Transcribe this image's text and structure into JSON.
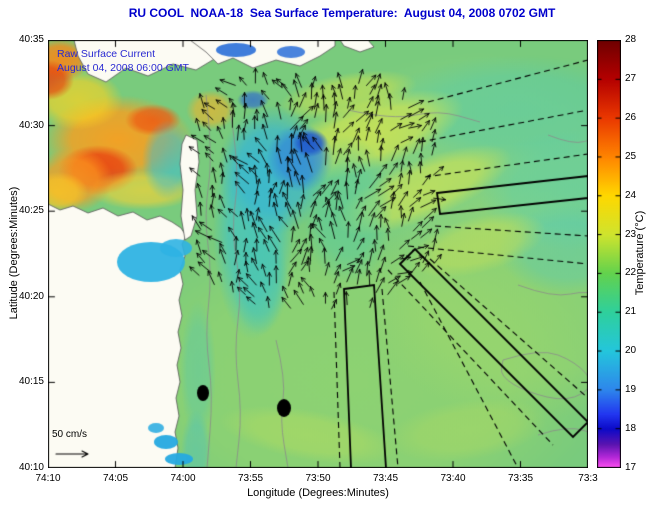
{
  "chart_data": {
    "type": "heatmap",
    "title": "RU COOL  NOAA-18  Sea Surface Temperature:  August 04, 2008 0702 GMT",
    "xlabel": "Longitude (Degrees:Minutes)",
    "ylabel": "Latitude (Degrees:Minutes)",
    "x_tick_labels": [
      "74:10",
      "74:05",
      "74:00",
      "73:55",
      "73:50",
      "73:45",
      "73:40",
      "73:35",
      "73:3"
    ],
    "y_tick_labels": [
      "40:10",
      "40:15",
      "40:20",
      "40:25",
      "40:30",
      "40:35"
    ],
    "x_range": "74:10 W to 73:30 W",
    "y_range": "40:10 N to 40:35 N",
    "grid": false,
    "legend_position": "right-colorbar",
    "colorbar": {
      "label": "Temperature (°C)",
      "ticks": [
        17,
        18,
        19,
        20,
        21,
        22,
        23,
        24,
        25,
        26,
        27,
        28
      ],
      "range_c": [
        17,
        28
      ],
      "stops": [
        [
          0,
          "#6e0000"
        ],
        [
          0.091,
          "#b40000"
        ],
        [
          0.182,
          "#ea3800"
        ],
        [
          0.273,
          "#ff8400"
        ],
        [
          0.364,
          "#ffd800"
        ],
        [
          0.455,
          "#cfe42e"
        ],
        [
          0.545,
          "#63d24d"
        ],
        [
          0.636,
          "#2fd09c"
        ],
        [
          0.727,
          "#24c6dc"
        ],
        [
          0.818,
          "#2e86ec"
        ],
        [
          0.875,
          "#2236f0"
        ],
        [
          0.909,
          "#0c0ac8"
        ],
        [
          0.945,
          "#5a14b0"
        ],
        [
          0.975,
          "#b428d8"
        ],
        [
          1,
          "#ff50f0"
        ]
      ]
    },
    "annotations": {
      "current_label": "Raw Surface Current",
      "current_time": "August 04, 2008 06:00 GMT",
      "scale_label": "50 cm/s"
    },
    "sst_summary": {
      "coastal_upwelling_c": 19.5,
      "offshore_shelf_c": 22.5,
      "warm_filaments_c": 24,
      "raritan_bay_c": 26.5,
      "features": "Cold coastal upwelling off NJ coast, warm Raritan Bay, HF-radar surface current vectors over an eddy, dashed/solid shipping traffic lanes into NY harbor, two dredge-disposal dots"
    },
    "colors": {
      "title": "#0000cc",
      "overlay_text": "#2a2ad2",
      "contours": "#8a8a8a",
      "vectors": "#000000",
      "lanes": "#000000"
    },
    "plot": {
      "ocean_color": "#79cb7d",
      "land_color": "#fcfbf3",
      "coast_color": "#555555",
      "land_polygons": [
        [
          [
            0,
            428
          ],
          [
            127,
            428
          ],
          [
            130,
            408
          ],
          [
            127,
            392
          ],
          [
            131,
            376
          ],
          [
            128,
            358
          ],
          [
            132,
            342
          ],
          [
            129,
            325
          ],
          [
            133,
            308
          ],
          [
            130,
            292
          ],
          [
            134,
            276
          ],
          [
            131,
            260
          ],
          [
            135,
            244
          ],
          [
            132,
            230
          ],
          [
            137,
            216
          ],
          [
            134,
            204
          ],
          [
            138,
            196
          ],
          [
            133,
            188
          ],
          [
            124,
            182
          ],
          [
            112,
            176
          ],
          [
            99,
            180
          ],
          [
            85,
            172
          ],
          [
            70,
            176
          ],
          [
            55,
            168
          ],
          [
            40,
            173
          ],
          [
            25,
            166
          ],
          [
            12,
            170
          ],
          [
            0,
            164
          ]
        ],
        [
          [
            26,
            0
          ],
          [
            165,
            0
          ],
          [
            168,
            18
          ],
          [
            148,
            30
          ],
          [
            125,
            24
          ],
          [
            100,
            36
          ],
          [
            78,
            28
          ],
          [
            58,
            42
          ],
          [
            40,
            34
          ],
          [
            30,
            16
          ]
        ],
        [
          [
            138,
            95
          ],
          [
            149,
            100
          ],
          [
            151,
            122
          ],
          [
            147,
            150
          ],
          [
            149,
            176
          ],
          [
            143,
            196
          ],
          [
            137,
            200
          ],
          [
            133,
            176
          ],
          [
            135,
            150
          ],
          [
            132,
            124
          ],
          [
            134,
            104
          ]
        ],
        [
          [
            142,
            0
          ],
          [
            158,
            12
          ],
          [
            170,
            24
          ],
          [
            185,
            18
          ],
          [
            205,
            28
          ],
          [
            228,
            20
          ],
          [
            252,
            26
          ],
          [
            272,
            16
          ],
          [
            287,
            6
          ],
          [
            287,
            0
          ]
        ],
        [
          [
            292,
            0
          ],
          [
            296,
            6
          ],
          [
            312,
            12
          ],
          [
            326,
            7
          ],
          [
            320,
            0
          ]
        ]
      ],
      "inlets": [
        [
          103,
          222,
          34,
          20,
          "#2fb3e3",
          0.95
        ],
        [
          128,
          208,
          16,
          9,
          "#2fb3e3",
          0.9
        ],
        [
          118,
          402,
          12,
          7,
          "#25a9e0",
          0.95
        ],
        [
          131,
          419,
          14,
          6,
          "#25a9e0",
          0.95
        ],
        [
          108,
          388,
          8,
          5,
          "#25a9e0",
          0.85
        ],
        [
          188,
          10,
          20,
          7,
          "#2a6fd8",
          0.9
        ],
        [
          243,
          12,
          14,
          6,
          "#2a6fd8",
          0.85
        ]
      ],
      "sst_patches": [
        [
          300,
          340,
          260,
          160,
          "#9ed86a",
          0.55,
          0
        ],
        [
          430,
          120,
          180,
          110,
          "#8ed687",
          0.5,
          0
        ],
        [
          480,
          260,
          160,
          120,
          "#a6da68",
          0.45,
          0
        ],
        [
          470,
          70,
          140,
          55,
          "#58cba8",
          0.55,
          0
        ],
        [
          520,
          150,
          90,
          60,
          "#5bcfae",
          0.5,
          0
        ],
        [
          520,
          210,
          70,
          45,
          "#55c9b8",
          0.45,
          0
        ],
        [
          320,
          95,
          100,
          35,
          "#d8e74e",
          0.75,
          -18
        ],
        [
          375,
          150,
          95,
          30,
          "#cfe455",
          0.7,
          -22
        ],
        [
          300,
          55,
          70,
          22,
          "#cde24e",
          0.6,
          -10
        ],
        [
          430,
          205,
          70,
          28,
          "#c2df5a",
          0.55,
          -15
        ],
        [
          260,
          395,
          90,
          25,
          "#b5dd5f",
          0.5,
          10
        ],
        [
          420,
          390,
          80,
          30,
          "#aeda62",
          0.45,
          -8
        ],
        [
          205,
          190,
          40,
          110,
          "#3ec4cb",
          0.7,
          0
        ],
        [
          225,
          130,
          55,
          65,
          "#35b4d6",
          0.75,
          0
        ],
        [
          252,
          118,
          34,
          34,
          "#2e86dd",
          0.8,
          0
        ],
        [
          262,
          103,
          18,
          14,
          "#1d52cc",
          0.85,
          0
        ],
        [
          212,
          240,
          28,
          55,
          "#47c6b4",
          0.6,
          0
        ],
        [
          300,
          170,
          45,
          75,
          "#54cba4",
          0.5,
          0
        ],
        [
          205,
          60,
          16,
          10,
          "#2a63d4",
          0.7,
          0
        ],
        [
          150,
          330,
          18,
          70,
          "#5ac8a9",
          0.5,
          0
        ],
        [
          148,
          410,
          15,
          40,
          "#4fc3bb",
          0.5,
          0
        ],
        [
          70,
          100,
          75,
          45,
          "#ff9d1c",
          0.9,
          0
        ],
        [
          50,
          130,
          40,
          25,
          "#ea3a0e",
          0.85,
          0
        ],
        [
          105,
          80,
          28,
          16,
          "#ef5511",
          0.8,
          0
        ],
        [
          30,
          60,
          45,
          30,
          "#ffd31f",
          0.7,
          0
        ],
        [
          12,
          20,
          30,
          22,
          "#ff8412",
          0.85,
          0
        ],
        [
          0,
          40,
          26,
          20,
          "#e8420d",
          0.8,
          0
        ],
        [
          95,
          150,
          55,
          20,
          "#ffd331",
          0.65,
          0
        ],
        [
          25,
          140,
          40,
          32,
          "#ff9a1e",
          0.8,
          0
        ],
        [
          10,
          152,
          30,
          20,
          "#ffc824",
          0.7,
          0
        ],
        [
          120,
          120,
          26,
          40,
          "#3fbcd0",
          0.6,
          0
        ],
        [
          163,
          70,
          25,
          20,
          "#ffb020",
          0.6,
          0
        ]
      ],
      "contours": [
        [
          [
            158,
            55
          ],
          [
            165,
            115
          ],
          [
            156,
            175
          ],
          [
            164,
            235
          ],
          [
            157,
            295
          ],
          [
            165,
            355
          ],
          [
            159,
            428
          ]
        ],
        [
          [
            182,
            70
          ],
          [
            192,
            130
          ],
          [
            183,
            190
          ],
          [
            194,
            250
          ],
          [
            186,
            310
          ],
          [
            194,
            372
          ],
          [
            188,
            428
          ]
        ],
        [
          [
            228,
            300
          ],
          [
            238,
            340
          ],
          [
            232,
            380
          ],
          [
            240,
            428
          ]
        ],
        [
          [
            300,
            70
          ],
          [
            345,
            80
          ],
          [
            390,
            70
          ],
          [
            432,
            82
          ]
        ],
        [
          [
            455,
            320
          ],
          [
            492,
            308
          ],
          [
            528,
            322
          ],
          [
            548,
            345
          ],
          [
            520,
            362
          ],
          [
            478,
            352
          ],
          [
            452,
            336
          ],
          [
            455,
            320
          ]
        ],
        [
          [
            470,
            245
          ],
          [
            505,
            258
          ],
          [
            540,
            250
          ],
          [
            568,
            262
          ]
        ],
        [
          [
            490,
            395
          ],
          [
            520,
            385
          ],
          [
            552,
            396
          ],
          [
            572,
            412
          ]
        ],
        [
          [
            500,
            95
          ],
          [
            525,
            105
          ],
          [
            548,
            98
          ]
        ]
      ],
      "lanes_solid": [
        [
          [
            389,
            153
          ],
          [
            540,
            136
          ],
          [
            540,
            158
          ],
          [
            392,
            174
          ]
        ],
        [
          [
            352,
            224
          ],
          [
            367,
            209
          ],
          [
            540,
            382
          ],
          [
            525,
            397
          ]
        ],
        [
          [
            296,
            249
          ],
          [
            326,
            245
          ],
          [
            338,
            428
          ],
          [
            303,
            428
          ]
        ]
      ],
      "lanes_dashed": [
        [
          380,
          62,
          540,
          20
        ],
        [
          372,
          102,
          540,
          70
        ],
        [
          377,
          137,
          540,
          114
        ],
        [
          387,
          186,
          540,
          196
        ],
        [
          360,
          206,
          540,
          224
        ],
        [
          340,
          230,
          505,
          405
        ],
        [
          382,
          219,
          540,
          358
        ],
        [
          372,
          242,
          470,
          428
        ],
        [
          286,
          252,
          292,
          428
        ],
        [
          334,
          249,
          350,
          428
        ]
      ],
      "vector_field": {
        "x0": 154,
        "x1": 392,
        "y0": 46,
        "y1": 268,
        "step": 11,
        "center_x": 262,
        "center_y": 152,
        "rx": 150,
        "ry": 124,
        "seed": 11,
        "speed_scale_cm_s": 50
      },
      "dots": [
        [
          155,
          353,
          6,
          8
        ],
        [
          236,
          368,
          7,
          9
        ]
      ],
      "scale_arrow": {
        "x1": 8,
        "y1": 414,
        "x2": 40,
        "y2": 414
      }
    }
  }
}
